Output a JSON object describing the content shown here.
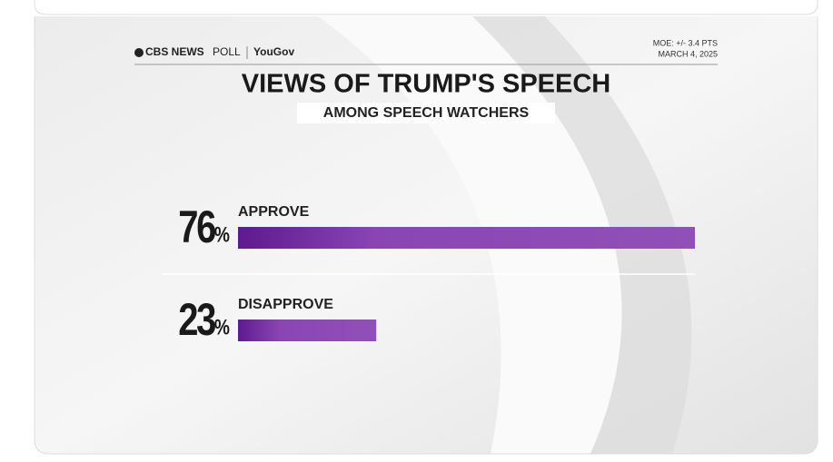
{
  "brand": "CBS NEWS",
  "brand_suffix": "POLL",
  "partner": "YouGov",
  "moe": "MOE: +/- 3.4 PTS",
  "date": "MARCH 4, 2025",
  "chart_data": {
    "type": "bar",
    "orientation": "horizontal",
    "title": "VIEWS OF TRUMP'S SPEECH",
    "subtitle": "AMONG SPEECH WATCHERS",
    "categories": [
      "APPROVE",
      "DISAPPROVE"
    ],
    "values": [
      76,
      23
    ],
    "value_labels": [
      "76%",
      "23%"
    ],
    "color": "#8a45b3"
  }
}
